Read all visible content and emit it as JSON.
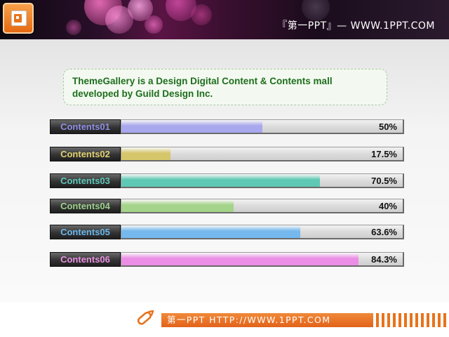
{
  "header": {
    "title": "『第一PPT』— WWW.1PPT.COM",
    "logo_icon": "presentation-document-icon"
  },
  "intro": {
    "text": "ThemeGallery is a Design Digital Content & Contents mall developed by Guild Design Inc."
  },
  "bars": [
    {
      "label": "Contents01",
      "value_text": "50%",
      "fraction": 0.5,
      "label_color": "#8e8ee6",
      "fill_color": "#a8a8ee"
    },
    {
      "label": "Contents02",
      "value_text": "17.5%",
      "fraction": 0.175,
      "label_color": "#e0d070",
      "fill_color": "#d6c66a"
    },
    {
      "label": "Contents03",
      "value_text": "70.5%",
      "fraction": 0.705,
      "label_color": "#5ec8b8",
      "fill_color": "#5ec8b4"
    },
    {
      "label": "Contents04",
      "value_text": "40%",
      "fraction": 0.4,
      "label_color": "#9cd08c",
      "fill_color": "#a4d38a"
    },
    {
      "label": "Contents05",
      "value_text": "63.6%",
      "fraction": 0.636,
      "label_color": "#6ab6ec",
      "fill_color": "#74b8ee"
    },
    {
      "label": "Contents06",
      "value_text": "84.3%",
      "fraction": 0.843,
      "label_color": "#e890e0",
      "fill_color": "#ec8ee6"
    }
  ],
  "footer": {
    "text": "第一PPT HTTP://WWW.1PPT.COM",
    "accent_color": "#e8731c",
    "pencil_icon": "pencil-icon"
  }
}
